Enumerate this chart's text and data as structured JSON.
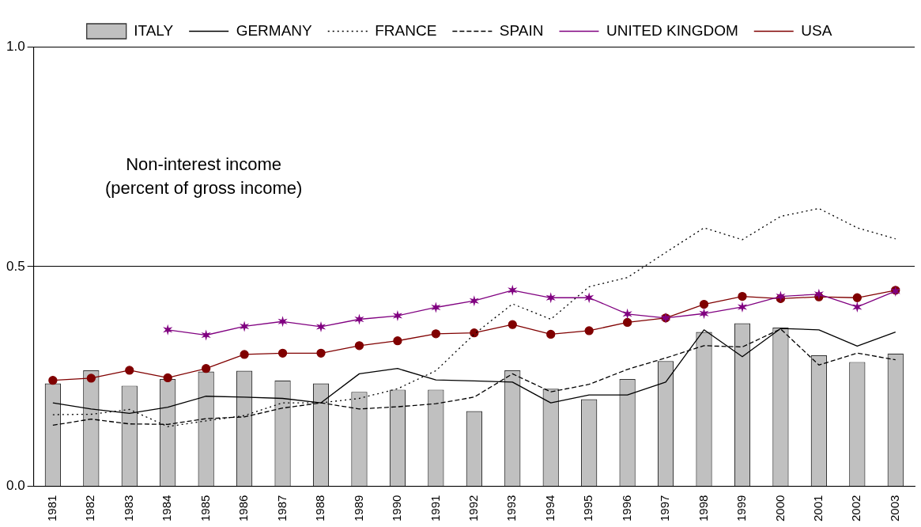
{
  "chart_data": {
    "type": "bar",
    "title": "Non-interest income\n(percent of gross income)",
    "categories": [
      "1981",
      "1982",
      "1983",
      "1984",
      "1985",
      "1986",
      "1987",
      "1988",
      "1989",
      "1990",
      "1991",
      "1992",
      "1993",
      "1994",
      "1995",
      "1996",
      "1997",
      "1998",
      "1999",
      "2000",
      "2001",
      "2002",
      "2003"
    ],
    "series": [
      {
        "name": "ITALY",
        "color": "#c0c0c0",
        "values": [
          0.234,
          0.264,
          0.229,
          0.244,
          0.261,
          0.263,
          0.241,
          0.234,
          0.215,
          0.22,
          0.22,
          0.171,
          0.264,
          0.222,
          0.198,
          0.244,
          0.285,
          0.351,
          0.371,
          0.361,
          0.298,
          0.283,
          0.302
        ]
      },
      {
        "name": "GERMANY",
        "type": "line",
        "color": "#000000",
        "line_style": "solid",
        "marker": "none",
        "values": [
          0.19,
          0.176,
          0.166,
          0.18,
          0.205,
          0.203,
          0.2,
          0.19,
          0.256,
          0.268,
          0.242,
          0.24,
          0.237,
          0.19,
          0.208,
          0.208,
          0.237,
          0.356,
          0.295,
          0.359,
          0.356,
          0.319,
          0.351
        ]
      },
      {
        "name": "FRANCE",
        "type": "line",
        "color": "#000000",
        "line_style": "dotted",
        "marker": "none",
        "values": [
          0.163,
          0.164,
          0.175,
          0.136,
          0.149,
          0.161,
          0.19,
          0.19,
          0.2,
          0.222,
          0.263,
          0.346,
          0.415,
          0.38,
          0.454,
          0.475,
          0.532,
          0.588,
          0.561,
          0.614,
          0.632,
          0.588,
          0.563
        ]
      },
      {
        "name": "SPAIN",
        "type": "line",
        "color": "#000000",
        "line_style": "dashed",
        "marker": "none",
        "values": [
          0.139,
          0.153,
          0.142,
          0.141,
          0.154,
          0.158,
          0.178,
          0.19,
          0.176,
          0.181,
          0.188,
          0.203,
          0.256,
          0.215,
          0.232,
          0.266,
          0.292,
          0.32,
          0.317,
          0.358,
          0.276,
          0.303,
          0.288
        ]
      },
      {
        "name": "UNITED KINGDOM",
        "type": "line",
        "color": "#800080",
        "line_style": "solid",
        "marker": "cross",
        "values": [
          null,
          null,
          null,
          0.356,
          0.344,
          0.364,
          0.375,
          0.363,
          0.38,
          0.388,
          0.407,
          0.422,
          0.446,
          0.429,
          0.429,
          0.392,
          0.383,
          0.393,
          0.408,
          0.432,
          0.437,
          0.408,
          0.444
        ]
      },
      {
        "name": "USA",
        "type": "line",
        "color": "#800000",
        "line_style": "solid",
        "marker": "circle",
        "values": [
          0.241,
          0.246,
          0.264,
          0.247,
          0.268,
          0.3,
          0.303,
          0.303,
          0.32,
          0.331,
          0.347,
          0.349,
          0.368,
          0.346,
          0.354,
          0.373,
          0.383,
          0.414,
          0.432,
          0.427,
          0.431,
          0.429,
          0.446
        ]
      }
    ],
    "ylim": [
      0,
      1
    ],
    "yticks": [
      {
        "value": 0,
        "label": "0.0"
      },
      {
        "value": 0.5,
        "label": "0.5"
      },
      {
        "value": 1,
        "label": "1.0"
      }
    ],
    "grid": "y",
    "legend": "top"
  }
}
